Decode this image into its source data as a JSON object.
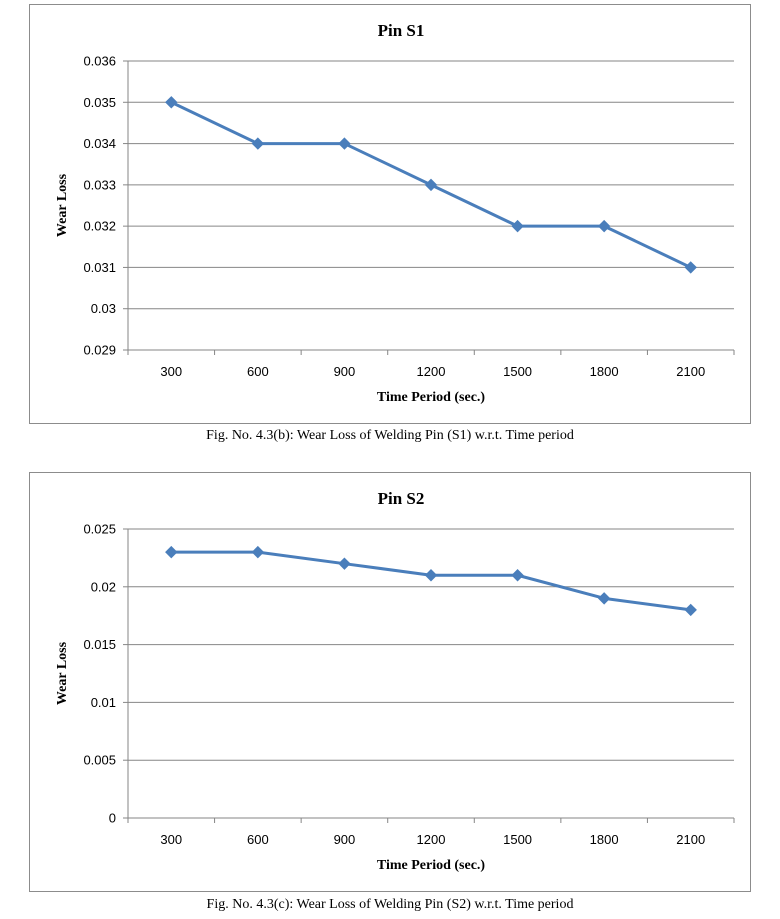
{
  "chart_data": [
    {
      "type": "line",
      "title": "Pin S1",
      "xlabel": "Time Period (sec.)",
      "ylabel": "Wear Loss",
      "categories": [
        "300",
        "600",
        "900",
        "1200",
        "1500",
        "1800",
        "2100"
      ],
      "series": [
        {
          "values": [
            0.035,
            0.034,
            0.034,
            0.033,
            0.032,
            0.032,
            0.031
          ]
        }
      ],
      "ylim": [
        0.029,
        0.036
      ],
      "yticks": [
        "0.029",
        "0.03",
        "0.031",
        "0.032",
        "0.033",
        "0.034",
        "0.035",
        "0.036"
      ],
      "grid": true,
      "color": "#4a7ebb",
      "marker": "diamond"
    },
    {
      "type": "line",
      "title": "Pin S2",
      "xlabel": "Time Period (sec.)",
      "ylabel": "Wear Loss",
      "categories": [
        "300",
        "600",
        "900",
        "1200",
        "1500",
        "1800",
        "2100"
      ],
      "series": [
        {
          "values": [
            0.023,
            0.023,
            0.022,
            0.021,
            0.021,
            0.019,
            0.018
          ]
        }
      ],
      "ylim": [
        0,
        0.025
      ],
      "yticks": [
        "0",
        "0.005",
        "0.01",
        "0.015",
        "0.02",
        "0.025"
      ],
      "grid": true,
      "color": "#4a7ebb",
      "marker": "diamond"
    }
  ],
  "captions": [
    "Fig. No. 4.3(b): Wear Loss of Welding Pin (S1) w.r.t. Time period",
    "Fig. No. 4.3(c): Wear Loss of Welding Pin (S2) w.r.t. Time period"
  ]
}
